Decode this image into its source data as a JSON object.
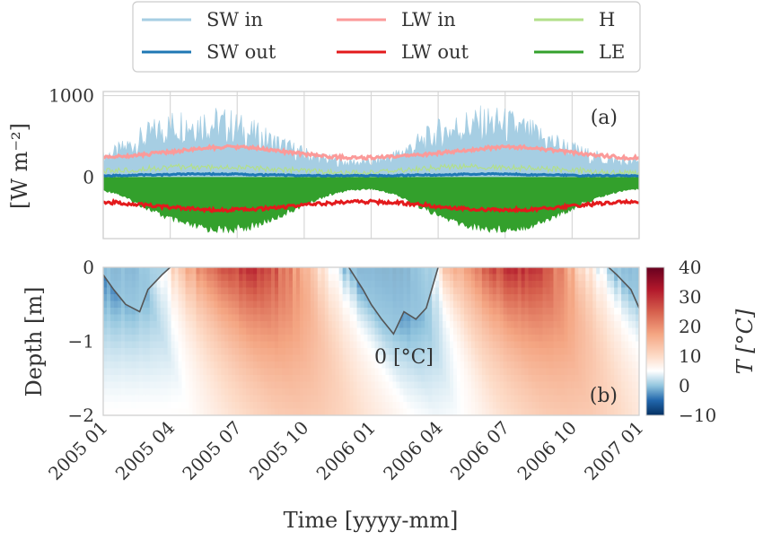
{
  "chart_data": [
    {
      "type": "area",
      "panel_label": "(a)",
      "ylabel": "[W m⁻²]",
      "ylim": [
        -750,
        1050
      ],
      "yticks": [
        0,
        1000
      ],
      "grid": true,
      "legend_position": "top-center",
      "x_range": [
        "2005-01",
        "2007-01"
      ],
      "series": [
        {
          "name": "SW in",
          "color": "#a6cee3",
          "monthly_peak": [
            300,
            400,
            600,
            800,
            900,
            900,
            850,
            700,
            550,
            400,
            300,
            250,
            250,
            350,
            550,
            750,
            850,
            900,
            850,
            700,
            550,
            400,
            300,
            250
          ]
        },
        {
          "name": "SW out",
          "color": "#1f78b4",
          "monthly_mean": [
            20,
            20,
            30,
            30,
            40,
            40,
            40,
            30,
            30,
            20,
            20,
            20,
            20,
            20,
            30,
            30,
            40,
            40,
            40,
            30,
            30,
            20,
            20,
            20
          ]
        },
        {
          "name": "LW in",
          "color": "#fb9a99",
          "monthly_mean": [
            240,
            250,
            270,
            300,
            330,
            360,
            370,
            360,
            320,
            290,
            260,
            240,
            240,
            250,
            270,
            300,
            330,
            360,
            370,
            360,
            320,
            290,
            260,
            240
          ]
        },
        {
          "name": "LW out",
          "color": "#e31a1c",
          "monthly_mean": [
            -300,
            -310,
            -330,
            -360,
            -380,
            -400,
            -400,
            -390,
            -370,
            -340,
            -320,
            -300,
            -300,
            -310,
            -330,
            -360,
            -380,
            -400,
            -400,
            -390,
            -370,
            -340,
            -320,
            -300
          ]
        },
        {
          "name": "H",
          "color": "#b2df8a",
          "monthly_mean": [
            60,
            80,
            100,
            120,
            130,
            120,
            120,
            110,
            100,
            80,
            60,
            50,
            60,
            80,
            100,
            120,
            130,
            120,
            120,
            110,
            100,
            80,
            60,
            50
          ]
        },
        {
          "name": "LE",
          "color": "#33a02c",
          "monthly_min": [
            -150,
            -200,
            -350,
            -500,
            -620,
            -680,
            -690,
            -640,
            -520,
            -380,
            -250,
            -170,
            -150,
            -220,
            -370,
            -520,
            -630,
            -680,
            -680,
            -630,
            -500,
            -360,
            -240,
            -160
          ]
        }
      ]
    },
    {
      "type": "heatmap",
      "panel_label": "(b)",
      "ylabel": "Depth [m]",
      "xlabel": "Time [yyyy-mm]",
      "ylim": [
        -2,
        0
      ],
      "yticks": [
        0,
        -1,
        -2
      ],
      "x_ticks": [
        "2005 01",
        "2005 04",
        "2005 07",
        "2005 10",
        "2006 01",
        "2006 04",
        "2006 07",
        "2006 10",
        "2007 01"
      ],
      "colorbar": {
        "label": "T [°C]",
        "range": [
          -10,
          40
        ],
        "ticks": [
          -10,
          0,
          10,
          20,
          30,
          40
        ],
        "colormap": "RdBu_r"
      },
      "annotation": "0 [°C]",
      "monthly_surface_temperature": [
        -5,
        -4,
        5,
        14,
        22,
        28,
        30,
        27,
        20,
        10,
        2,
        -6,
        -9,
        -7,
        2,
        14,
        22,
        28,
        30,
        28,
        20,
        10,
        2,
        -5
      ],
      "frozen_depth_profile": {
        "times": [
          "2005-01",
          "2005-01-15",
          "2005-02",
          "2005-02-20",
          "2005-03",
          "2005-03-20",
          "2005-04",
          "2005-12",
          "2005-12-20",
          "2006-01",
          "2006-01-15",
          "2006-02",
          "2006-02-15",
          "2006-03",
          "2006-03-15",
          "2006-04",
          "2006-11-20",
          "2006-12",
          "2006-12-20",
          "2007-01"
        ],
        "depth_m": [
          -0.1,
          -0.3,
          -0.5,
          -0.6,
          -0.3,
          -0.1,
          0,
          0,
          -0.3,
          -0.5,
          -0.7,
          -0.9,
          -0.6,
          -0.7,
          -0.55,
          0,
          0,
          -0.1,
          -0.3,
          -0.55
        ]
      }
    }
  ]
}
